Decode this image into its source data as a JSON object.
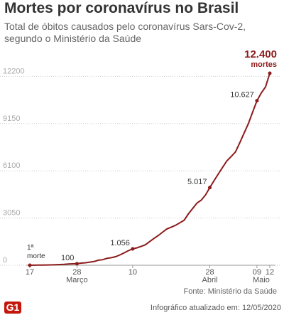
{
  "chart_data": {
    "type": "line",
    "title": "Mortes por coronavírus no Brasil",
    "subtitle": [
      "Total de óbitos causados pelo coronavírus Sars-Cov-2,",
      "segundo o Ministério da Saúde"
    ],
    "x": [
      "03-17",
      "03-18",
      "03-19",
      "03-20",
      "03-21",
      "03-22",
      "03-23",
      "03-24",
      "03-25",
      "03-26",
      "03-27",
      "03-28",
      "03-29",
      "03-30",
      "03-31",
      "04-01",
      "04-02",
      "04-03",
      "04-04",
      "04-05",
      "04-06",
      "04-07",
      "04-08",
      "04-09",
      "04-10",
      "04-11",
      "04-12",
      "04-13",
      "04-14",
      "04-15",
      "04-16",
      "04-17",
      "04-18",
      "04-19",
      "04-20",
      "04-21",
      "04-22",
      "04-23",
      "04-24",
      "04-25",
      "04-26",
      "04-27",
      "04-28",
      "04-29",
      "04-30",
      "05-01",
      "05-02",
      "05-03",
      "05-04",
      "05-05",
      "05-06",
      "05-07",
      "05-08",
      "05-09",
      "05-10",
      "05-11",
      "05-12"
    ],
    "series": [
      {
        "name": "Mortes",
        "color": "#8c1b1b",
        "values": [
          1,
          4,
          7,
          11,
          18,
          25,
          34,
          46,
          57,
          77,
          92,
          100,
          136,
          159,
          201,
          240,
          324,
          359,
          445,
          486,
          553,
          667,
          800,
          941,
          1056,
          1124,
          1223,
          1328,
          1532,
          1736,
          1924,
          2141,
          2347,
          2462,
          2575,
          2741,
          2906,
          3313,
          3670,
          4016,
          4205,
          4543,
          5017,
          5466,
          5901,
          6329,
          6750,
          7025,
          7321,
          7921,
          8536,
          9146,
          9897,
          10627,
          11123,
          11519,
          12400
        ],
        "value_labels": [
          "1ª\nmorte",
          null,
          null,
          null,
          null,
          null,
          null,
          null,
          null,
          null,
          null,
          "100",
          null,
          null,
          null,
          null,
          null,
          null,
          null,
          null,
          null,
          null,
          null,
          null,
          "1.056",
          null,
          null,
          null,
          null,
          null,
          null,
          null,
          null,
          null,
          null,
          null,
          null,
          null,
          null,
          null,
          null,
          null,
          "5.017",
          null,
          null,
          null,
          null,
          null,
          null,
          null,
          null,
          null,
          null,
          "10.627",
          null,
          null,
          "12.400\nmortes"
        ]
      }
    ],
    "xlim": [
      "03-17",
      "05-12"
    ],
    "xticks": [
      {
        "value": "03-17",
        "label": "17"
      },
      {
        "value": "03-28",
        "label": "28"
      },
      {
        "value": "04-10",
        "label": "10"
      },
      {
        "value": "04-28",
        "label": "28"
      },
      {
        "value": "05-09",
        "label": "09"
      },
      {
        "value": "05-12",
        "label": "12"
      }
    ],
    "xmonths": [
      {
        "value": "03-28",
        "label": "Março"
      },
      {
        "value": "04-28",
        "label": "Abril"
      },
      {
        "value": "05-10",
        "label": "Maio"
      }
    ],
    "ylim": [
      0,
      13000
    ],
    "yticks": [
      0,
      3050,
      6100,
      9150,
      12200
    ],
    "grid": true,
    "source": "Fonte: Ministério da Saúde",
    "logo": "G1",
    "updated": "Infográfico atualizado em: 12/05/2020"
  }
}
